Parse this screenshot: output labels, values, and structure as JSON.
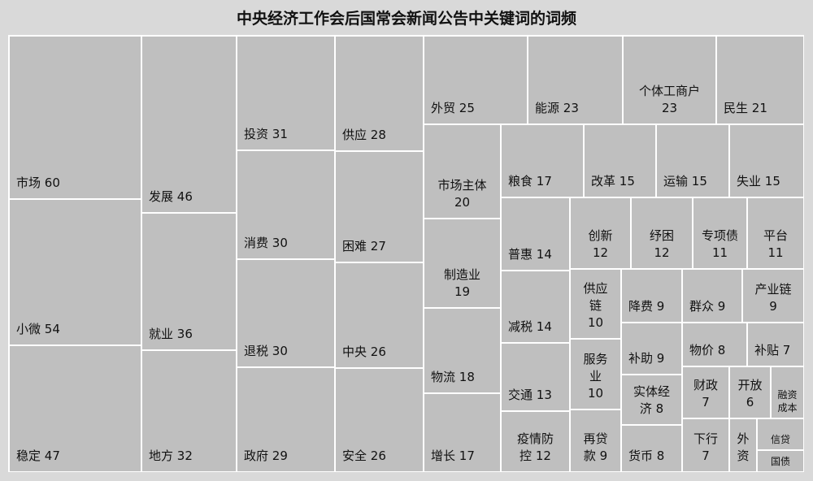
{
  "chart_data": {
    "type": "treemap",
    "title": "中央经济工作会后国常会新闻公告中关键词的词频",
    "colors": {
      "background": "#d9d9d9",
      "cell": "#bfbfbf",
      "border": "#ffffff"
    },
    "items": [
      {
        "name": "市场",
        "value": 60
      },
      {
        "name": "小微",
        "value": 54
      },
      {
        "name": "稳定",
        "value": 47
      },
      {
        "name": "发展",
        "value": 46
      },
      {
        "name": "就业",
        "value": 36
      },
      {
        "name": "地方",
        "value": 32
      },
      {
        "name": "投资",
        "value": 31
      },
      {
        "name": "消费",
        "value": 30
      },
      {
        "name": "退税",
        "value": 30
      },
      {
        "name": "政府",
        "value": 29
      },
      {
        "name": "供应",
        "value": 28
      },
      {
        "name": "困难",
        "value": 27
      },
      {
        "name": "中央",
        "value": 26
      },
      {
        "name": "安全",
        "value": 26
      },
      {
        "name": "外贸",
        "value": 25
      },
      {
        "name": "能源",
        "value": 23
      },
      {
        "name": "个体工商户",
        "value": 23
      },
      {
        "name": "民生",
        "value": 21
      },
      {
        "name": "市场主体",
        "value": 20
      },
      {
        "name": "制造业",
        "value": 19
      },
      {
        "name": "物流",
        "value": 18
      },
      {
        "name": "增长",
        "value": 17
      },
      {
        "name": "粮食",
        "value": 17
      },
      {
        "name": "改革",
        "value": 15
      },
      {
        "name": "运输",
        "value": 15
      },
      {
        "name": "失业",
        "value": 15
      },
      {
        "name": "普惠",
        "value": 14
      },
      {
        "name": "减税",
        "value": 14
      },
      {
        "name": "交通",
        "value": 13
      },
      {
        "name": "疫情防控",
        "value": 12
      },
      {
        "name": "创新",
        "value": 12
      },
      {
        "name": "纾困",
        "value": 12
      },
      {
        "name": "专项债",
        "value": 11
      },
      {
        "name": "平台",
        "value": 11
      },
      {
        "name": "供应链",
        "value": 10
      },
      {
        "name": "服务业",
        "value": 10
      },
      {
        "name": "再贷款",
        "value": 9
      },
      {
        "name": "降费",
        "value": 9
      },
      {
        "name": "群众",
        "value": 9
      },
      {
        "name": "产业链",
        "value": 9
      },
      {
        "name": "补助",
        "value": 9
      },
      {
        "name": "实体经济",
        "value": 8
      },
      {
        "name": "货币",
        "value": 8
      },
      {
        "name": "物价",
        "value": 8
      },
      {
        "name": "补贴",
        "value": 7
      },
      {
        "name": "财政",
        "value": 7
      },
      {
        "name": "开放",
        "value": 6
      },
      {
        "name": "融资成本",
        "value": null
      },
      {
        "name": "下行",
        "value": 7
      },
      {
        "name": "外资",
        "value": null
      },
      {
        "name": "信贷",
        "value": null
      },
      {
        "name": "国债",
        "value": null
      }
    ]
  }
}
